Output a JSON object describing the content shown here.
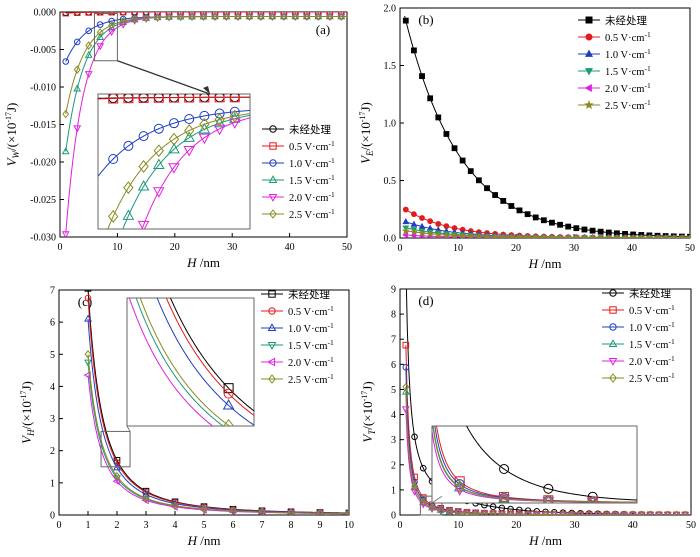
{
  "chart_data": [
    {
      "panel": "(a)",
      "type": "line",
      "ylabel_main": "V",
      "ylabel_sub": "W",
      "ylabel_unit": "/(×10",
      "ylabel_exp": "-17",
      "ylabel_tail": "J)",
      "xlabel_main": "H",
      "xlabel_unit": "/nm",
      "xlim": [
        0,
        50
      ],
      "ylim": [
        -0.03,
        0.0
      ],
      "xticks": [
        "0",
        "10",
        "20",
        "30",
        "40",
        "50"
      ],
      "yticks": [
        "-0.030",
        "-0.025",
        "-0.020",
        "-0.015",
        "-0.010",
        "-0.005",
        "0.000"
      ],
      "series": [
        {
          "name": "未经处理",
          "color": "#000000",
          "marker": "circle",
          "coef": -0.0001,
          "tau": 4
        },
        {
          "name": "0.5 V·cm",
          "color": "#e41a1c",
          "marker": "square",
          "coef": -0.00015,
          "tau": 4
        },
        {
          "name": "1.0 V·cm",
          "color": "#1f3fbf",
          "marker": "circle",
          "coef": -0.006,
          "tau": 3.5
        },
        {
          "name": "1.5 V·cm",
          "color": "#1a9a7a",
          "marker": "triangle-up",
          "coef": -0.018,
          "tau": 3.2
        },
        {
          "name": "2.0 V·cm",
          "color": "#e020e0",
          "marker": "triangle-down",
          "coef": -0.029,
          "tau": 3.0
        },
        {
          "name": "2.5 V·cm",
          "color": "#8a8a20",
          "marker": "diamond",
          "coef": -0.013,
          "tau": 3.3
        }
      ]
    },
    {
      "panel": "(b)",
      "type": "line",
      "ylabel_main": "V",
      "ylabel_sub": "E",
      "ylabel_unit": "/(×10",
      "ylabel_exp": "-17",
      "ylabel_tail": "J)",
      "xlabel_main": "H",
      "xlabel_unit": "/nm",
      "xlim": [
        0,
        50
      ],
      "ylim": [
        0,
        2.0
      ],
      "xticks": [
        "0",
        "10",
        "20",
        "30",
        "40",
        "50"
      ],
      "yticks": [
        "0.0",
        "0.5",
        "1.0",
        "1.5",
        "2.0"
      ],
      "series": [
        {
          "name": "未经处理",
          "color": "#000000",
          "marker": "square-filled",
          "a": 2.1,
          "tau": 9.5
        },
        {
          "name": "0.5 V·cm",
          "color": "#e41a1c",
          "marker": "circle-filled",
          "a": 0.28,
          "tau": 8
        },
        {
          "name": "1.0 V·cm",
          "color": "#1f3fbf",
          "marker": "triangle-up-filled",
          "a": 0.16,
          "tau": 8
        },
        {
          "name": "1.5 V·cm",
          "color": "#1a9a7a",
          "marker": "triangle-down-filled",
          "a": 0.1,
          "tau": 8
        },
        {
          "name": "2.0 V·cm",
          "color": "#e020e0",
          "marker": "triangle-left-filled",
          "a": 0.03,
          "tau": 8
        },
        {
          "name": "2.5 V·cm",
          "color": "#8a8a20",
          "marker": "star-filled",
          "a": 0.07,
          "tau": 8
        }
      ]
    },
    {
      "panel": "(c)",
      "type": "line",
      "ylabel_main": "V",
      "ylabel_sub": "H",
      "ylabel_unit": "/(×10",
      "ylabel_exp": "-17",
      "ylabel_tail": "J)",
      "xlabel_main": "H",
      "xlabel_unit": "/nm",
      "xlim": [
        0,
        10
      ],
      "ylim": [
        0,
        7
      ],
      "xticks": [
        "0",
        "1",
        "2",
        "3",
        "4",
        "5",
        "6",
        "7",
        "8",
        "9",
        "10"
      ],
      "yticks": [
        "0",
        "1",
        "2",
        "3",
        "4",
        "5",
        "6",
        "7"
      ],
      "series": [
        {
          "name": "未经处理",
          "color": "#000000",
          "marker": "square",
          "a": 7.05
        },
        {
          "name": "0.5 V·cm",
          "color": "#e41a1c",
          "marker": "circle",
          "a": 6.75
        },
        {
          "name": "1.0 V·cm",
          "color": "#1f3fbf",
          "marker": "triangle-up",
          "a": 6.1
        },
        {
          "name": "1.5 V·cm",
          "color": "#1a9a7a",
          "marker": "triangle-down",
          "a": 4.75
        },
        {
          "name": "2.0 V·cm",
          "color": "#e020e0",
          "marker": "triangle-left",
          "a": 4.35
        },
        {
          "name": "2.5 V·cm",
          "color": "#8a8a20",
          "marker": "diamond",
          "a": 5.0
        }
      ]
    },
    {
      "panel": "(d)",
      "type": "line",
      "ylabel_main": "V",
      "ylabel_sub": "T",
      "ylabel_unit": "/(×10",
      "ylabel_exp": "-17",
      "ylabel_tail": "J)",
      "xlabel_main": "H",
      "xlabel_unit": "/nm",
      "xlim": [
        0,
        50
      ],
      "ylim": [
        0,
        9
      ],
      "xticks": [
        "0",
        "10",
        "20",
        "30",
        "40",
        "50"
      ],
      "yticks": [
        "0",
        "1",
        "2",
        "3",
        "4",
        "5",
        "6",
        "7",
        "8",
        "9"
      ],
      "series": [
        {
          "name": "未经处理",
          "color": "#000000",
          "marker": "circle",
          "a": 9.0,
          "slow": 1.5
        },
        {
          "name": "0.5 V·cm",
          "color": "#e41a1c",
          "marker": "square",
          "a": 6.9,
          "slow": 0
        },
        {
          "name": "1.0 V·cm",
          "color": "#1f3fbf",
          "marker": "circle",
          "a": 6.0,
          "slow": 0
        },
        {
          "name": "1.5 V·cm",
          "color": "#1a9a7a",
          "marker": "triangle-up",
          "a": 5.0,
          "slow": 0
        },
        {
          "name": "2.0 V·cm",
          "color": "#e020e0",
          "marker": "triangle-down",
          "a": 4.3,
          "slow": 0
        },
        {
          "name": "2.5 V·cm",
          "color": "#8a8a20",
          "marker": "diamond",
          "a": 5.2,
          "slow": 0
        }
      ]
    }
  ],
  "legend_superscript": "-1"
}
